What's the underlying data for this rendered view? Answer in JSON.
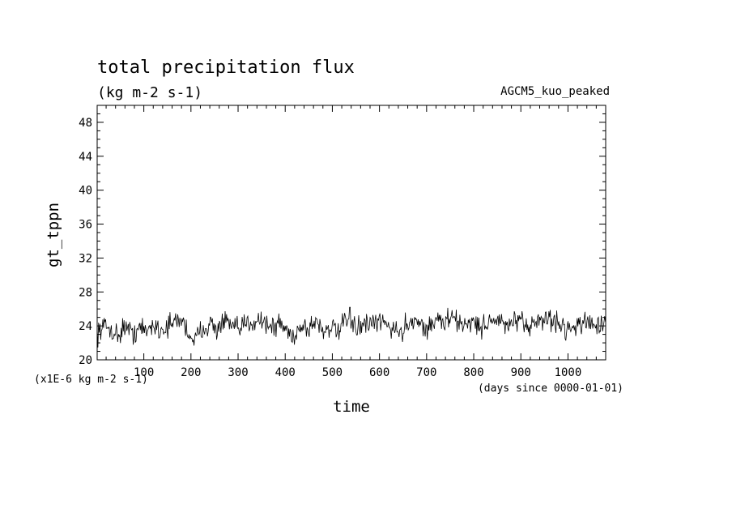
{
  "chart_data": {
    "type": "line",
    "title": "total precipitation flux",
    "subtitle": "(kg m-2 s-1)",
    "experiment": "AGCM5_kuo_peaked",
    "xlabel": "time",
    "x_units": "(days since 0000-01-01)",
    "ylabel": "gt_tppn",
    "y_scale_note": "(x1E-6 kg m-2 s-1)",
    "xlim": [
      1,
      1080
    ],
    "ylim": [
      20,
      50
    ],
    "x_ticks": [
      100,
      200,
      300,
      400,
      500,
      600,
      700,
      800,
      900,
      1000
    ],
    "y_ticks": [
      20,
      24,
      28,
      32,
      36,
      40,
      44,
      48
    ],
    "grid": false,
    "series": [
      {
        "color": "#000000",
        "x": [
          1,
          15,
          30,
          45,
          60,
          75,
          90,
          105,
          120,
          135,
          150,
          165,
          180,
          195,
          210,
          225,
          240,
          255,
          270,
          285,
          300,
          315,
          330,
          345,
          360,
          375,
          390,
          405,
          420,
          435,
          450,
          465,
          480,
          495,
          510,
          525,
          540,
          555,
          570,
          585,
          600,
          615,
          630,
          645,
          660,
          675,
          690,
          705,
          720,
          735,
          750,
          765,
          780,
          795,
          810,
          825,
          840,
          855,
          870,
          885,
          900,
          915,
          930,
          945,
          960,
          975,
          990,
          1005,
          1020,
          1035,
          1050,
          1065,
          1080
        ],
        "y": [
          23.2,
          24.0,
          23.6,
          22.8,
          24.1,
          23.0,
          23.8,
          23.3,
          24.2,
          23.5,
          23.9,
          24.4,
          24.8,
          23.1,
          22.3,
          23.8,
          24.3,
          23.5,
          24.6,
          24.0,
          23.4,
          24.2,
          24.5,
          24.9,
          24.3,
          23.7,
          24.4,
          23.2,
          22.9,
          24.1,
          23.6,
          24.7,
          23.4,
          24.0,
          23.1,
          24.3,
          24.8,
          23.6,
          24.2,
          23.9,
          24.6,
          24.1,
          23.8,
          23.0,
          24.4,
          24.9,
          24.0,
          23.7,
          24.8,
          24.3,
          25.0,
          24.5,
          24.1,
          24.7,
          23.8,
          24.2,
          24.9,
          24.4,
          23.9,
          24.6,
          24.2,
          23.8,
          24.8,
          24.5,
          25.0,
          24.3,
          24.0,
          23.6,
          24.4,
          24.1,
          24.7,
          23.9,
          24.2
        ]
      }
    ]
  }
}
